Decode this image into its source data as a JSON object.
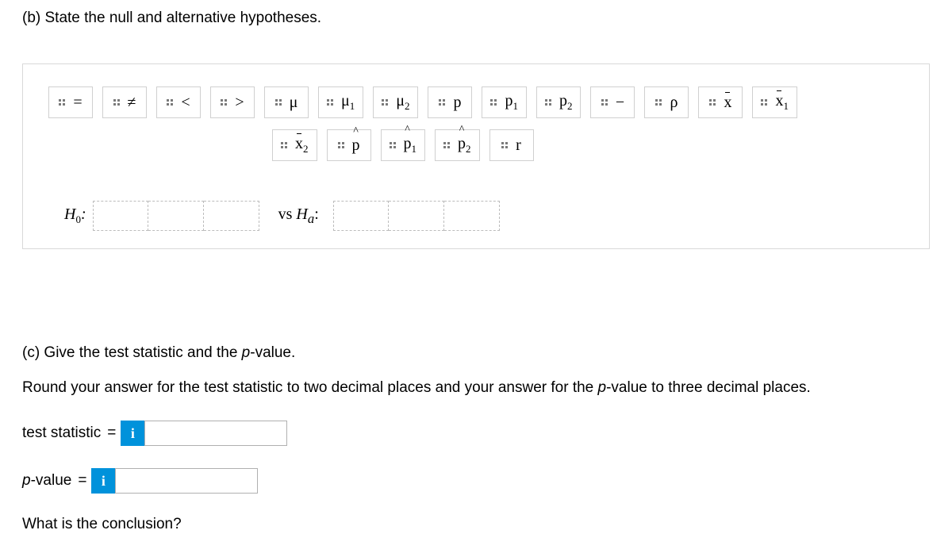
{
  "colors": {
    "chip_border": "#d0d0d0",
    "area_border": "#d9d9d9",
    "slot_border": "#bdbdbd",
    "info_bg": "#0092db",
    "grab_dot": "#7a7a7a"
  },
  "question_b": "(b) State the null and alternative hypotheses.",
  "palette": {
    "row1": [
      {
        "name": "chip-equals",
        "html": "="
      },
      {
        "name": "chip-neq",
        "html": "≠"
      },
      {
        "name": "chip-lt",
        "html": "<"
      },
      {
        "name": "chip-gt",
        "html": ">"
      },
      {
        "name": "chip-mu",
        "html": "<span class='it'>μ</span>"
      },
      {
        "name": "chip-mu1",
        "html": "<span class='it'>μ</span><span class='sub'>1</span>"
      },
      {
        "name": "chip-mu2",
        "html": "<span class='it'>μ</span><span class='sub'>2</span>"
      },
      {
        "name": "chip-p",
        "html": "<span class='it'>p</span>"
      },
      {
        "name": "chip-p1",
        "html": "<span class='it'>p</span><span class='sub'>1</span>"
      },
      {
        "name": "chip-p2",
        "html": "<span class='it'>p</span><span class='sub'>2</span>"
      },
      {
        "name": "chip-minus",
        "html": "−"
      },
      {
        "name": "chip-rho",
        "html": "<span class='it'>ρ</span>"
      },
      {
        "name": "chip-xbar",
        "html": "<span class='it bar'>x</span>"
      },
      {
        "name": "chip-xbar1",
        "html": "<span class='it bar'>x</span><span class='sub'>1</span>"
      }
    ],
    "row2": [
      {
        "name": "chip-xbar2",
        "html": "<span class='it bar'>x</span><span class='sub'>2</span>"
      },
      {
        "name": "chip-phat",
        "html": "<span class='it hat'>p</span>"
      },
      {
        "name": "chip-phat1",
        "html": "<span class='it hat'>p</span><span class='sub'>1</span>"
      },
      {
        "name": "chip-phat2",
        "html": "<span class='it hat'>p</span><span class='sub'>2</span>"
      },
      {
        "name": "chip-r",
        "html": "<span class='it'>r</span>"
      }
    ]
  },
  "hypotheses": {
    "null_label": "H",
    "null_sub": "0",
    "alt_label": "H",
    "alt_sub": "a",
    "vs_text": "vs",
    "colon": ":"
  },
  "section_c": {
    "title": "(c) Give the test statistic and the p-value.",
    "round_pre": "Round your answer for the test statistic to two decimal places and your answer for the ",
    "round_mid": "p",
    "round_post": "-value to three decimal places."
  },
  "inputs": {
    "test_stat_label": "test statistic",
    "pvalue_label_pre": "p",
    "pvalue_label_post": "-value",
    "equals": "=",
    "info": "i"
  },
  "conclusion": "What is the conclusion?"
}
